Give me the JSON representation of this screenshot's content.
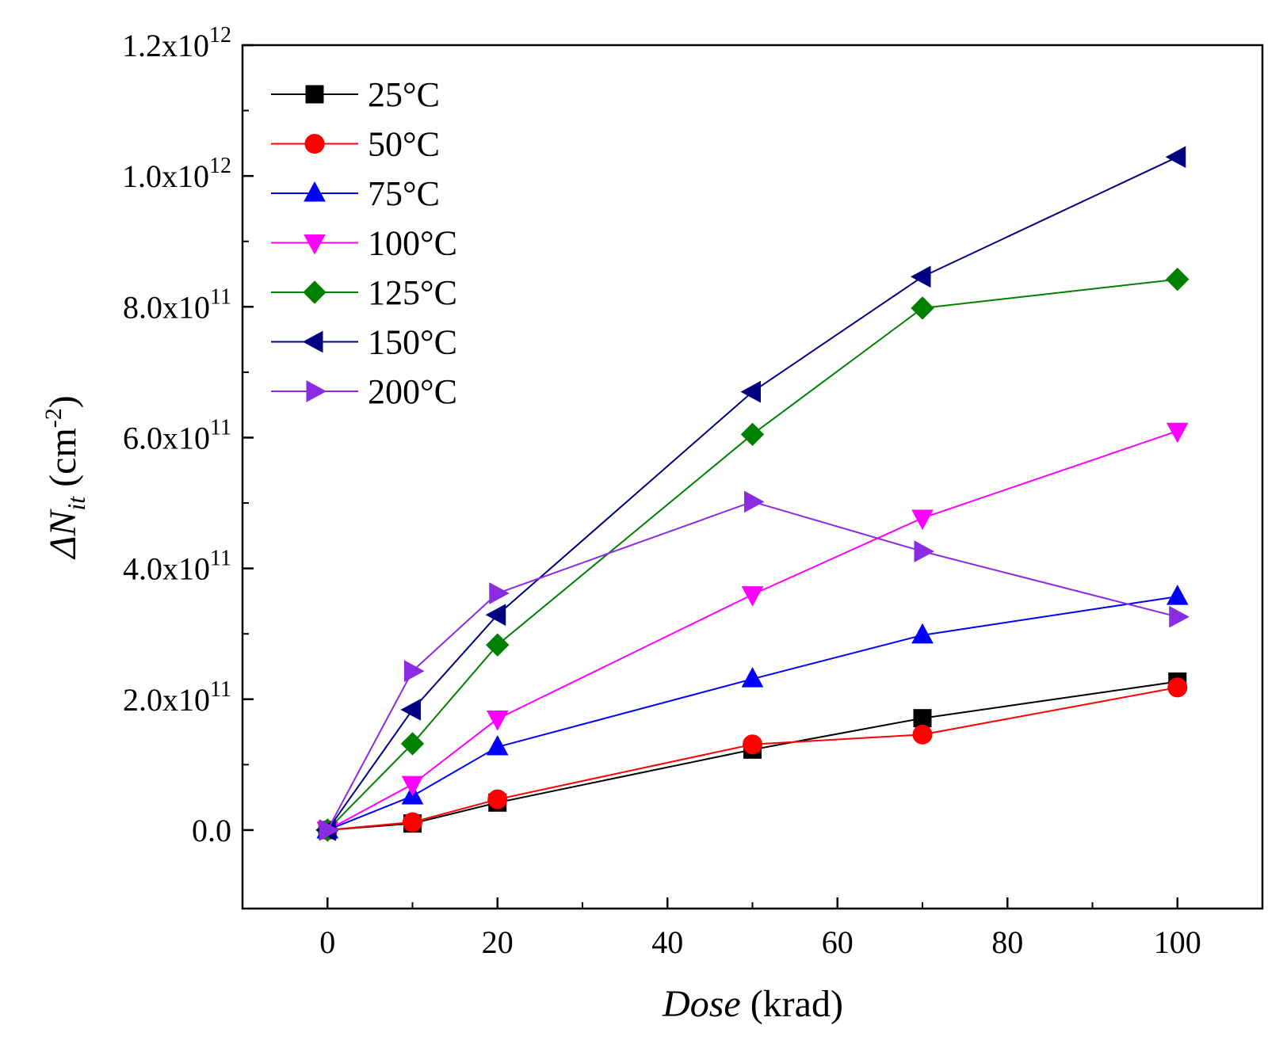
{
  "chart_data": {
    "type": "line",
    "x_label_italic": "Dose",
    "x_label_unit": " (krad)",
    "y_label_prefix": "ΔN",
    "y_label_sub": "it",
    "y_label_unit_open": " (cm",
    "y_label_unit_sup": "-2",
    "y_label_unit_close": ")",
    "xlim": [
      -10,
      110
    ],
    "ylim": [
      -120000000000.0,
      1200000000000.0
    ],
    "x_ticks": [
      0,
      20,
      40,
      60,
      80,
      100
    ],
    "x_tick_labels": [
      "0",
      "20",
      "40",
      "60",
      "80",
      "100"
    ],
    "y_ticks": [
      0,
      200000000000.0,
      400000000000.0,
      600000000000.0,
      800000000000.0,
      1000000000000.0,
      1200000000000.0
    ],
    "y_tick_labels": [
      {
        "mant": "0.0",
        "exp": ""
      },
      {
        "mant": "2.0x10",
        "exp": "11"
      },
      {
        "mant": "4.0x10",
        "exp": "11"
      },
      {
        "mant": "6.0x10",
        "exp": "11"
      },
      {
        "mant": "8.0x10",
        "exp": "11"
      },
      {
        "mant": "1.0x10",
        "exp": "12"
      },
      {
        "mant": "1.2x10",
        "exp": "12"
      }
    ],
    "grid": false,
    "legend_position": "top-left",
    "x": [
      0,
      10,
      20,
      50,
      70,
      100
    ],
    "series": [
      {
        "name": "25°C",
        "color": "#000000",
        "marker": "square",
        "values": [
          0,
          10000000000.0,
          42000000000.0,
          123000000000.0,
          171000000000.0,
          227000000000.0
        ]
      },
      {
        "name": "50°C",
        "color": "#ff0000",
        "marker": "circle",
        "values": [
          0,
          12000000000.0,
          47000000000.0,
          131000000000.0,
          146000000000.0,
          218000000000.0
        ]
      },
      {
        "name": "75°C",
        "color": "#0000ff",
        "marker": "triangle-up",
        "values": [
          0,
          52000000000.0,
          127000000000.0,
          231000000000.0,
          298000000000.0,
          357000000000.0
        ]
      },
      {
        "name": "100°C",
        "color": "#ff00ff",
        "marker": "triangle-down",
        "values": [
          0,
          70000000000.0,
          170000000000.0,
          360000000000.0,
          477000000000.0,
          610000000000.0
        ]
      },
      {
        "name": "125°C",
        "color": "#008000",
        "marker": "diamond",
        "values": [
          0,
          132000000000.0,
          283000000000.0,
          605000000000.0,
          798000000000.0,
          842000000000.0
        ]
      },
      {
        "name": "150°C",
        "color": "#000080",
        "marker": "triangle-left",
        "values": [
          0,
          184000000000.0,
          329000000000.0,
          670000000000.0,
          846000000000.0,
          1029000000000.0
        ]
      },
      {
        "name": "200°C",
        "color": "#8a2be2",
        "marker": "triangle-right",
        "values": [
          0,
          243000000000.0,
          362000000000.0,
          502000000000.0,
          426000000000.0,
          326000000000.0
        ]
      }
    ]
  }
}
